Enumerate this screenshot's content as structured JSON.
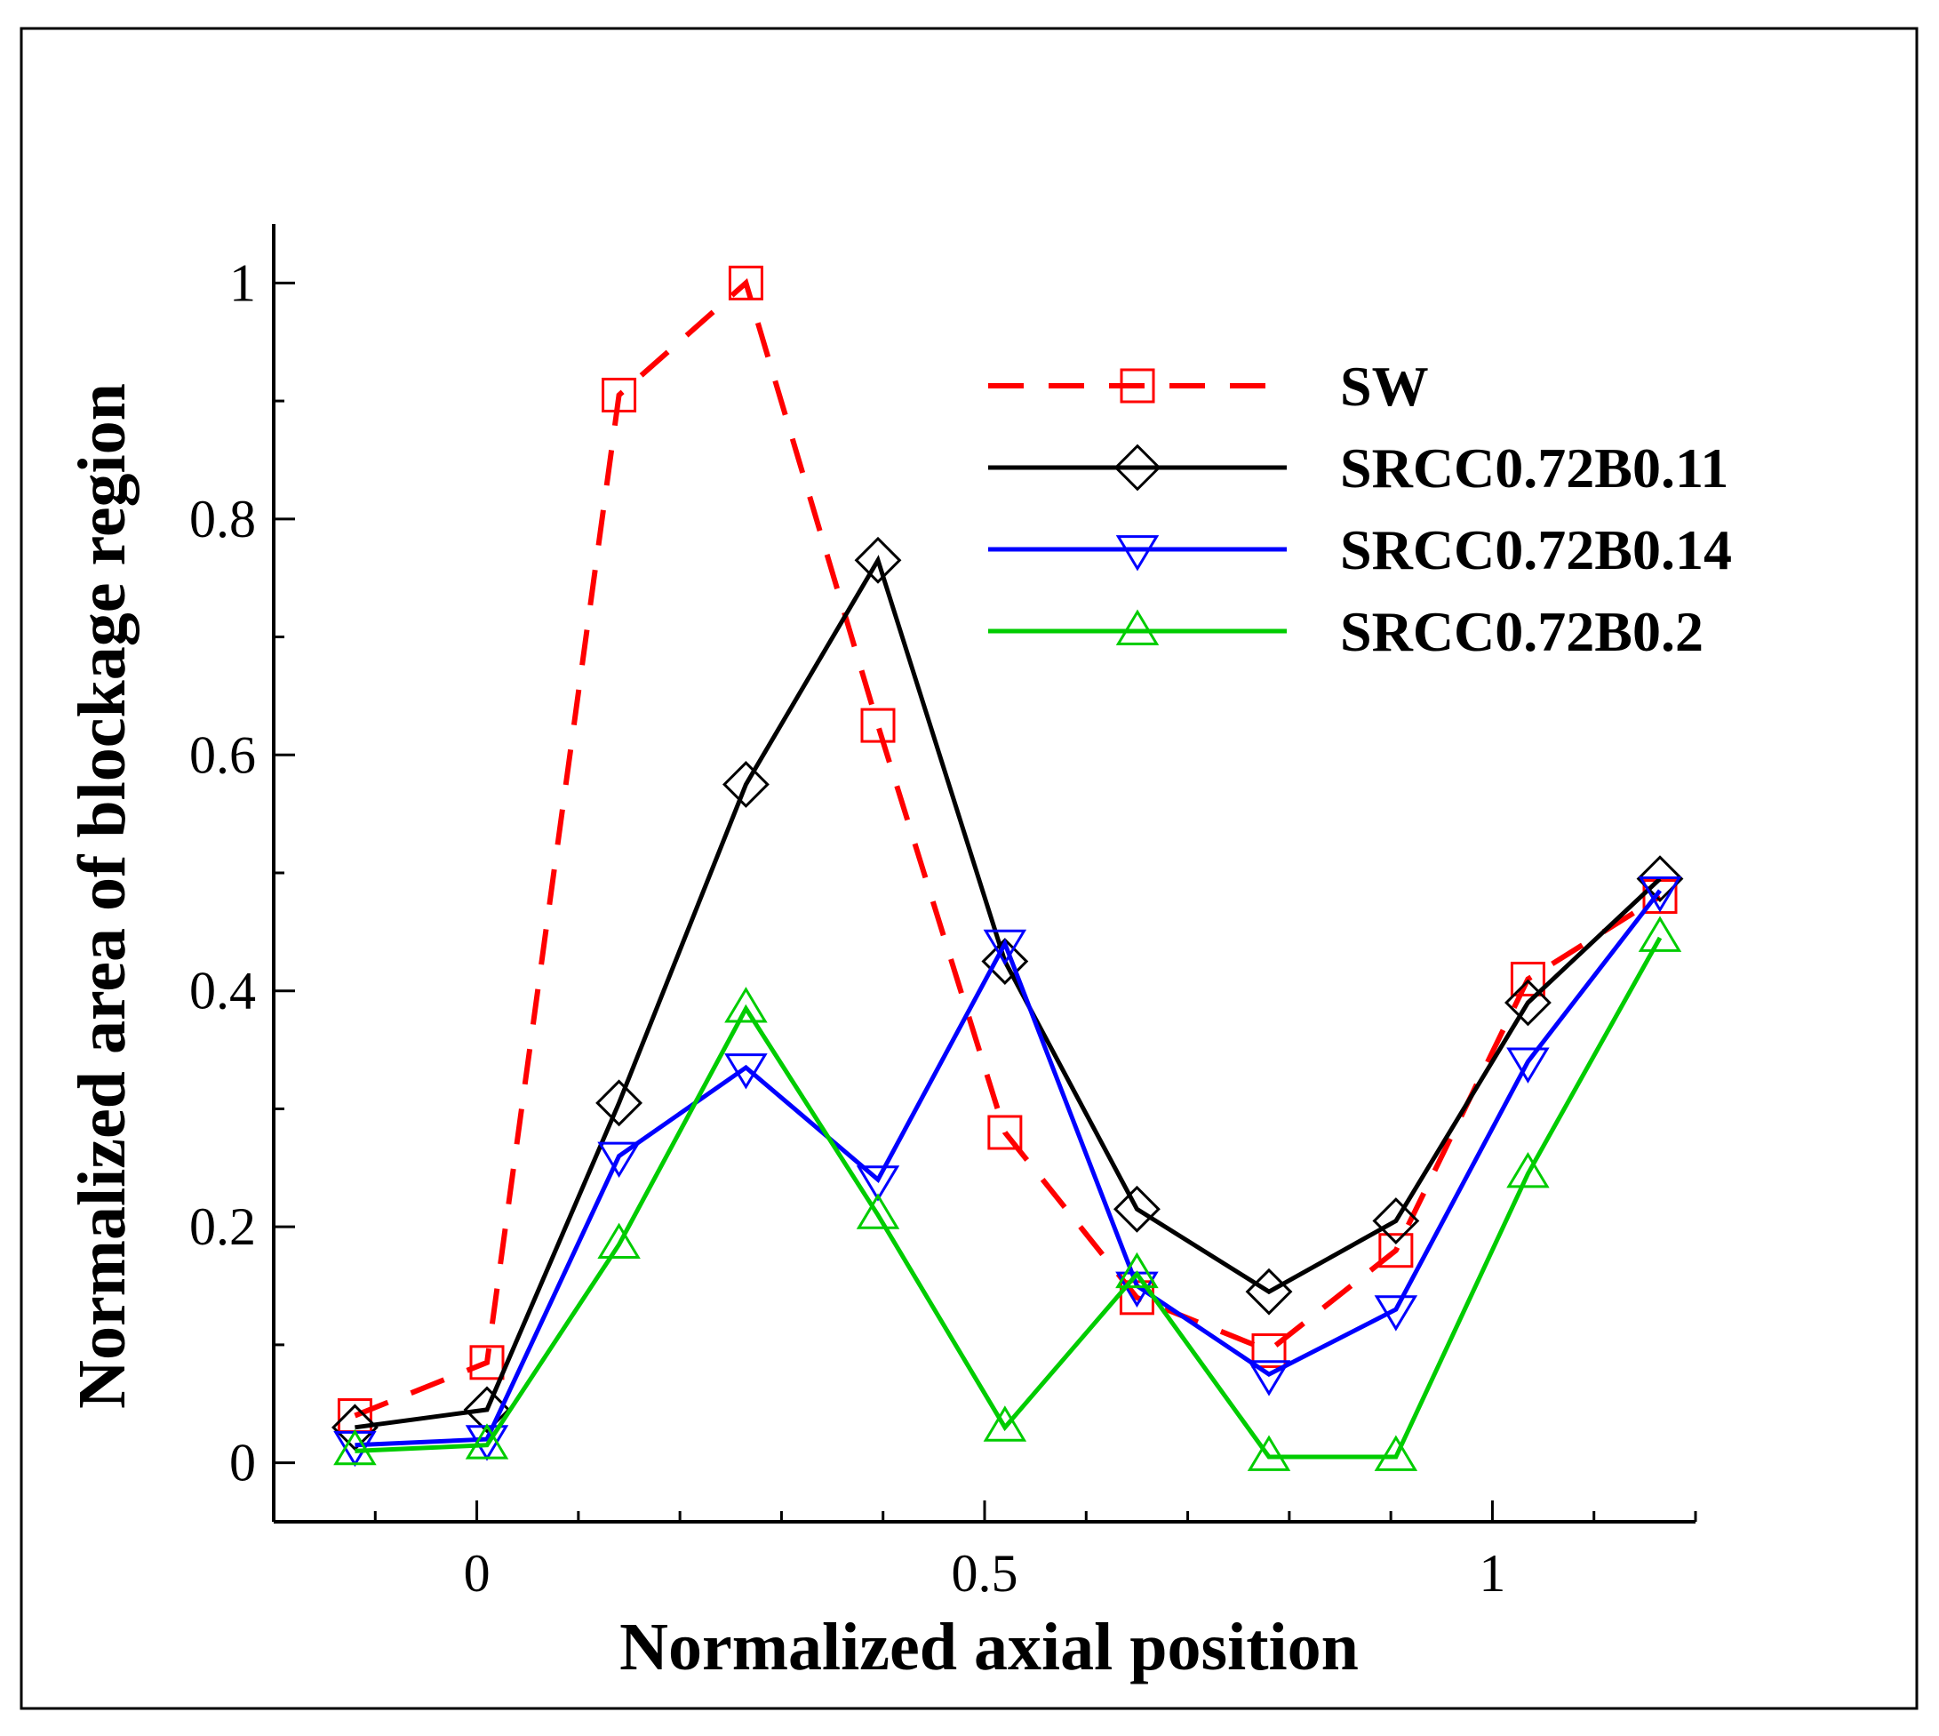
{
  "chart_data": {
    "type": "line",
    "title": "",
    "xlabel": "Normalized axial position",
    "ylabel": "Normalized area of blockage region",
    "xlim": [
      -0.2,
      1.2
    ],
    "ylim": [
      -0.05,
      1.05
    ],
    "xticks": [
      0,
      0.5,
      1
    ],
    "xtick_labels": [
      "0",
      "0.5",
      "1"
    ],
    "yticks": [
      0,
      0.2,
      0.4,
      0.6,
      0.8,
      1
    ],
    "ytick_labels": [
      "0",
      "0.2",
      "0.4",
      "0.6",
      "0.8",
      "1"
    ],
    "x": [
      -0.12,
      0.01,
      0.14,
      0.265,
      0.395,
      0.52,
      0.65,
      0.78,
      0.905,
      1.035,
      1.165
    ],
    "legend_position": "upper-right",
    "grid": false,
    "series": [
      {
        "name": "SW",
        "color": "#ff0000",
        "dash": "dashed",
        "marker": "square",
        "values": [
          0.04,
          0.085,
          0.905,
          1.0,
          0.625,
          0.28,
          0.14,
          0.095,
          0.18,
          0.41,
          0.48
        ]
      },
      {
        "name": "SRCC0.72B0.11",
        "color": "#000000",
        "dash": "solid",
        "marker": "diamond",
        "values": [
          0.03,
          0.045,
          0.305,
          0.575,
          0.765,
          0.425,
          0.215,
          0.145,
          0.205,
          0.39,
          0.495
        ]
      },
      {
        "name": "SRCC0.72B0.14",
        "color": "#0000ff",
        "dash": "solid",
        "marker": "triangle-down",
        "values": [
          0.015,
          0.02,
          0.26,
          0.335,
          0.24,
          0.44,
          0.15,
          0.075,
          0.13,
          0.34,
          0.485
        ]
      },
      {
        "name": "SRCC0.72B0.2",
        "color": "#00cc00",
        "dash": "solid",
        "marker": "triangle-up",
        "values": [
          0.01,
          0.015,
          0.185,
          0.385,
          0.21,
          0.03,
          0.16,
          0.005,
          0.005,
          0.245,
          0.445
        ]
      }
    ]
  }
}
